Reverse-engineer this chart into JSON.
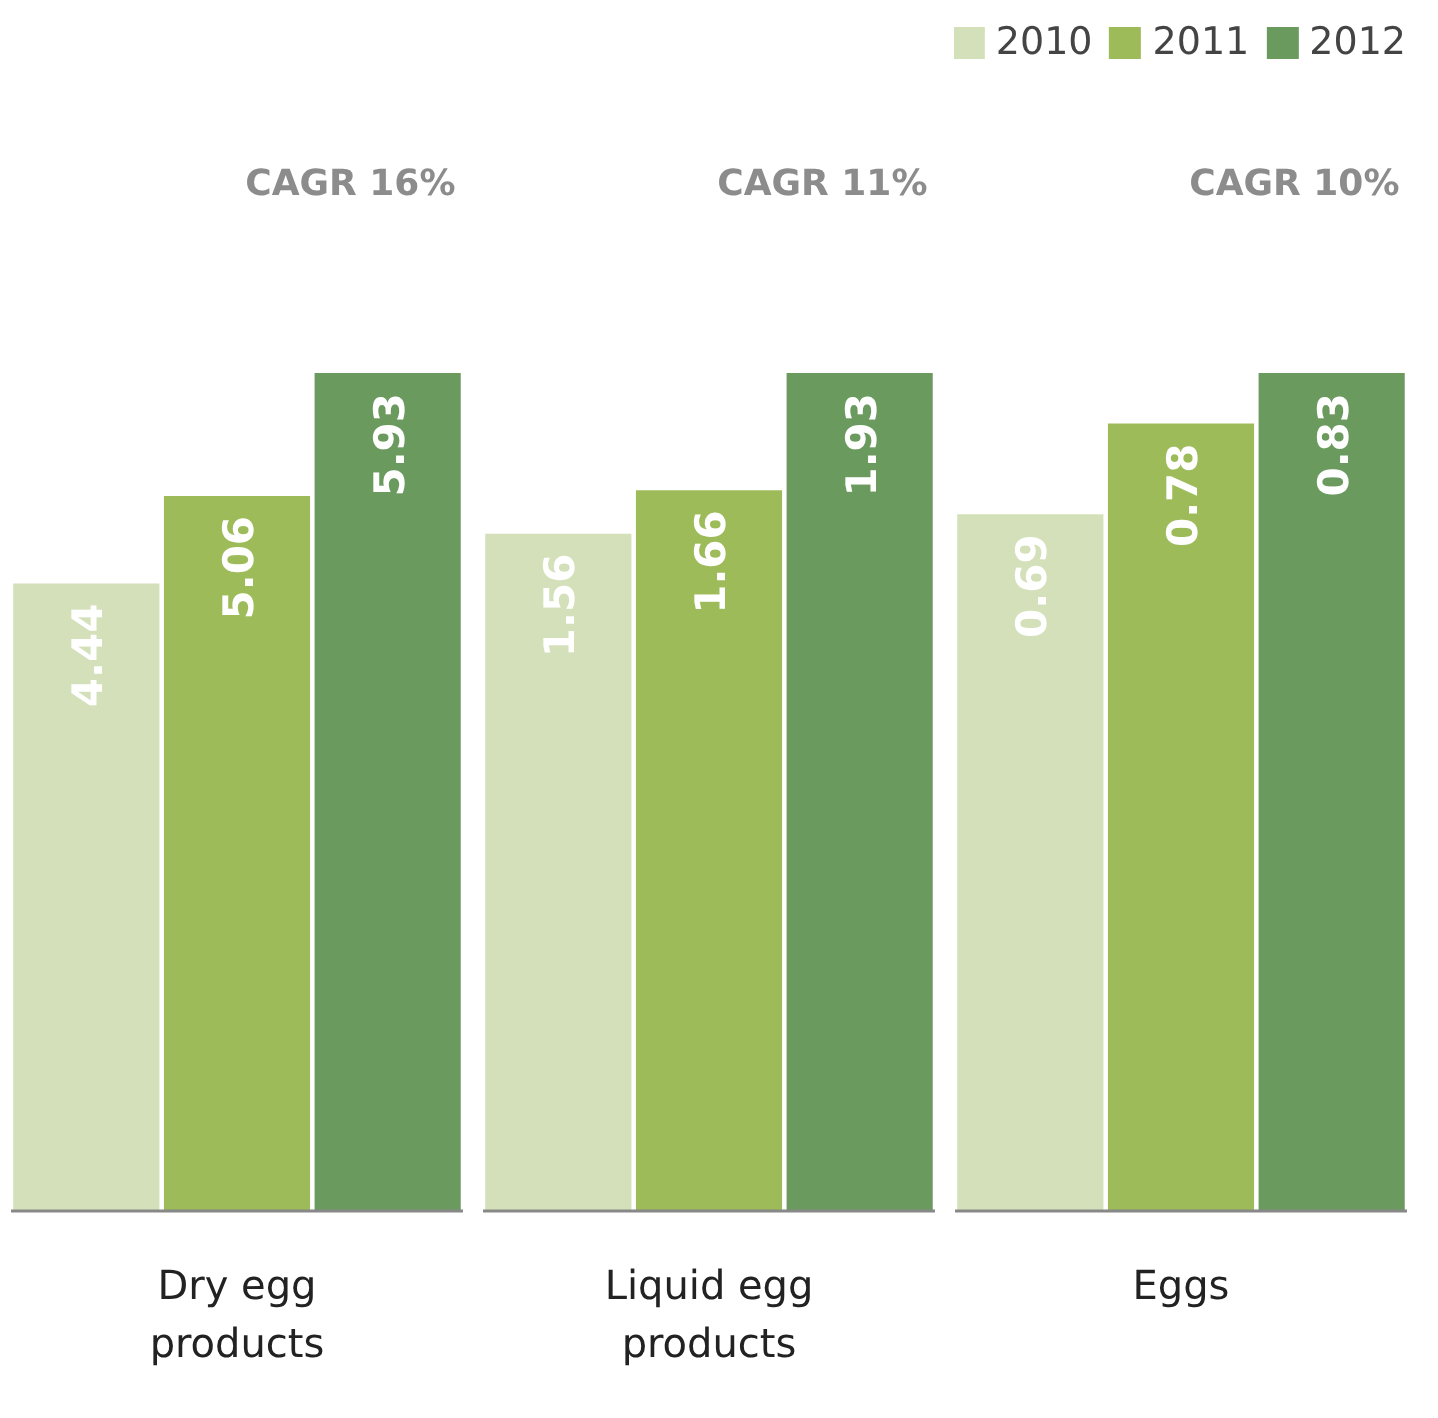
{
  "chart_data": [
    {
      "type": "bar",
      "categories": [
        null,
        null,
        null
      ],
      "xlabel": "Dry egg products",
      "annotations": [
        "CAGR 16%"
      ],
      "data_labels": true,
      "values": [
        4.44,
        5.06,
        5.93
      ],
      "colors": [
        "#d3e0b9",
        "#9dbb59",
        "#6b9a5e"
      ]
    },
    {
      "type": "bar",
      "categories": [
        null,
        null,
        null
      ],
      "xlabel": "Liquid egg products",
      "annotations": [
        "CAGR 11%"
      ],
      "data_labels": true,
      "values": [
        1.56,
        1.66,
        1.93
      ],
      "colors": [
        "#d3e0b9",
        "#9dbb59",
        "#6b9a5e"
      ]
    },
    {
      "type": "bar",
      "categories": [
        null,
        null,
        null
      ],
      "xlabel": "Eggs",
      "annotations": [
        "CAGR 10%"
      ],
      "data_labels": true,
      "legend": "top right",
      "stacked": true,
      "series": [
        {
          "name": "2010",
          "color": "#d3e0b9",
          "values": [
            0.69,
            null,
            null
          ]
        },
        {
          "name": "2011",
          "color": "#9dbb59",
          "values": [
            null,
            0.78,
            null
          ]
        },
        {
          "name": "2012",
          "color": "#6b9a5e",
          "values": [
            null,
            null,
            0.83
          ]
        }
      ]
    }
  ]
}
